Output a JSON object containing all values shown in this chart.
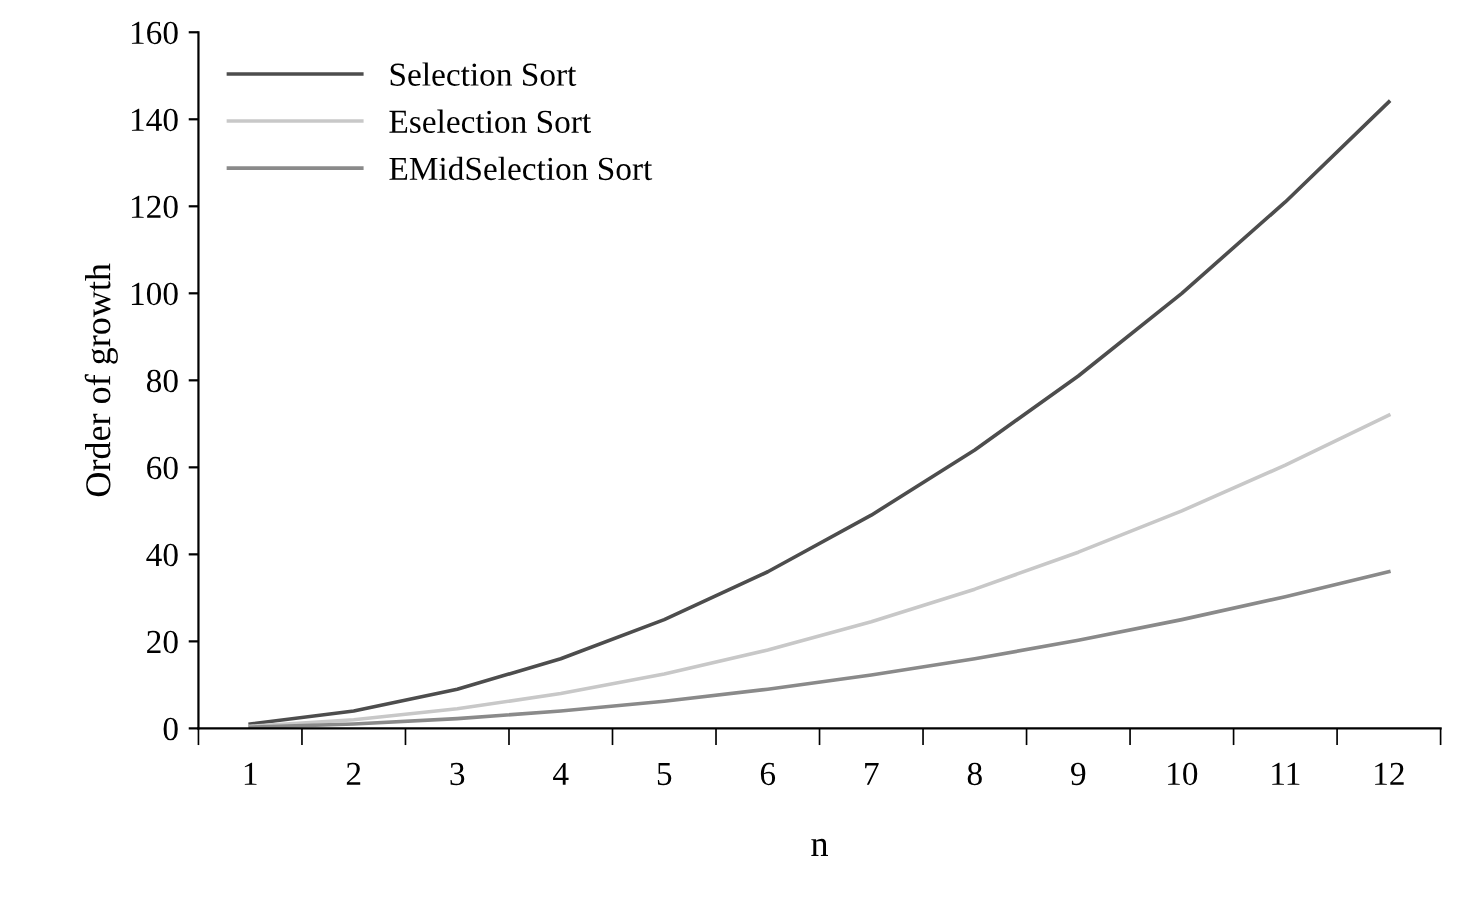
{
  "chart_data": {
    "type": "line",
    "xlabel": "n",
    "ylabel": "Order of growth",
    "categories": [
      "1",
      "2",
      "3",
      "4",
      "5",
      "6",
      "7",
      "8",
      "9",
      "10",
      "11",
      "12"
    ],
    "series": [
      {
        "name": "Selection Sort",
        "color": "#4d4d4d",
        "values": [
          1,
          4,
          9,
          16,
          25,
          36,
          49,
          64,
          81,
          100,
          121,
          144
        ]
      },
      {
        "name": "Eselection Sort",
        "color": "#c8c8c8",
        "values": [
          0.5,
          2,
          4.5,
          8,
          12.5,
          18,
          24.5,
          32,
          40.5,
          50,
          60.5,
          72
        ]
      },
      {
        "name": "EMidSelection Sort",
        "color": "#8a8a8a",
        "values": [
          0.25,
          1,
          2.25,
          4,
          6.25,
          9,
          12.25,
          16,
          20.25,
          25,
          30.25,
          36
        ]
      }
    ],
    "ylim": [
      0,
      160
    ],
    "yticks": [
      0,
      20,
      40,
      60,
      80,
      100,
      120,
      140,
      160
    ],
    "grid": false,
    "legend": "top left",
    "marker": "none",
    "line_style": "solid"
  }
}
